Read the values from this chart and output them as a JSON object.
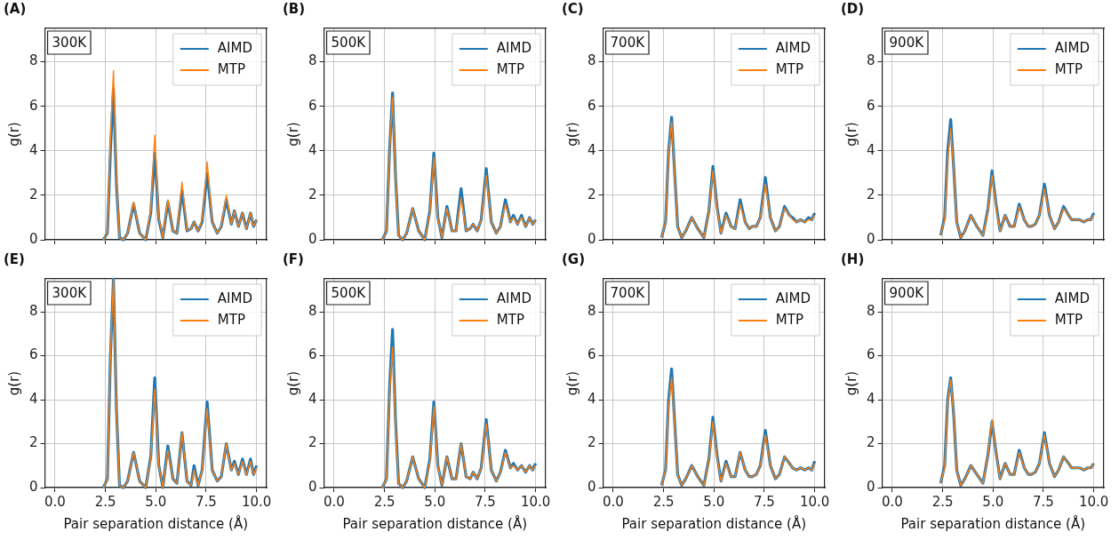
{
  "chart_data": [
    {
      "type": "line",
      "title": "(A)",
      "annotations": [
        "300K"
      ],
      "ylabel": "g(r)",
      "tick_labels": "y",
      "grid": true,
      "legend": "top right",
      "xlim": [
        -0.5,
        10.5
      ],
      "xticks": [
        {
          "value": 0,
          "label": null
        },
        {
          "value": 2.5,
          "label": null
        },
        {
          "value": 5,
          "label": null
        },
        {
          "value": 7.5,
          "label": null
        },
        {
          "value": 10,
          "label": null
        }
      ],
      "ylim": [
        0,
        9.5
      ],
      "yticks": [
        0,
        2,
        4,
        6,
        8
      ],
      "x": [
        2.4,
        2.6,
        2.75,
        2.9,
        3.05,
        3.2,
        3.4,
        3.6,
        3.9,
        4.2,
        4.5,
        4.75,
        4.95,
        5.15,
        5.35,
        5.6,
        5.85,
        6.05,
        6.3,
        6.55,
        6.75,
        6.9,
        7.1,
        7.3,
        7.55,
        7.8,
        8.05,
        8.25,
        8.5,
        8.75,
        8.9,
        9.1,
        9.3,
        9.5,
        9.7,
        9.85,
        10
      ],
      "series": [
        {
          "name": "AIMD",
          "color": "#1f77b4",
          "values": [
            0,
            0.3,
            4.0,
            6.8,
            2.5,
            0.1,
            0,
            0.3,
            1.6,
            0.3,
            0,
            1.2,
            3.9,
            0.9,
            0.1,
            1.7,
            0.4,
            0.3,
            2.2,
            0.4,
            0.5,
            0.8,
            0.4,
            0.8,
            3.0,
            0.8,
            0.3,
            0.6,
            1.8,
            0.7,
            1.3,
            0.6,
            1.2,
            0.5,
            1.2,
            0.6,
            0.9
          ]
        },
        {
          "name": "MTP",
          "color": "#ff7f0e",
          "values": [
            0,
            0.3,
            4.5,
            7.6,
            2.8,
            0.1,
            0,
            0.3,
            1.7,
            0.3,
            0,
            1.3,
            4.7,
            1.0,
            0.1,
            1.8,
            0.4,
            0.3,
            2.6,
            0.4,
            0.5,
            0.8,
            0.4,
            0.9,
            3.5,
            0.8,
            0.3,
            0.6,
            2.0,
            0.7,
            1.3,
            0.6,
            1.2,
            0.5,
            1.2,
            0.6,
            0.9
          ]
        }
      ]
    },
    {
      "type": "line",
      "title": "(B)",
      "annotations": [
        "500K"
      ],
      "ylabel": "g(r)",
      "tick_labels": "y",
      "grid": true,
      "legend": "top right",
      "xlim": [
        -0.5,
        10.5
      ],
      "xticks": [
        {
          "value": 0,
          "label": null
        },
        {
          "value": 2.5,
          "label": null
        },
        {
          "value": 5,
          "label": null
        },
        {
          "value": 7.5,
          "label": null
        },
        {
          "value": 10,
          "label": null
        }
      ],
      "ylim": [
        0,
        9.5
      ],
      "yticks": [
        0,
        2,
        4,
        6,
        8
      ],
      "x": [
        2.4,
        2.6,
        2.75,
        2.9,
        3.05,
        3.2,
        3.4,
        3.6,
        3.9,
        4.2,
        4.5,
        4.75,
        4.95,
        5.15,
        5.35,
        5.6,
        5.85,
        6.05,
        6.3,
        6.55,
        6.75,
        6.9,
        7.1,
        7.3,
        7.55,
        7.8,
        8.05,
        8.25,
        8.5,
        8.75,
        8.9,
        9.1,
        9.3,
        9.5,
        9.7,
        9.85,
        10
      ],
      "series": [
        {
          "name": "AIMD",
          "color": "#1f77b4",
          "values": [
            0,
            0.4,
            4.0,
            6.6,
            2.8,
            0.2,
            0,
            0.3,
            1.4,
            0.4,
            0,
            1.3,
            3.9,
            1.0,
            0.1,
            1.5,
            0.4,
            0.4,
            2.3,
            0.4,
            0.5,
            0.7,
            0.4,
            0.9,
            3.2,
            0.8,
            0.3,
            0.6,
            1.8,
            0.8,
            1.1,
            0.7,
            1.1,
            0.6,
            1.0,
            0.7,
            0.9
          ]
        },
        {
          "name": "MTP",
          "color": "#ff7f0e",
          "values": [
            0,
            0.4,
            3.9,
            6.4,
            2.7,
            0.2,
            0,
            0.3,
            1.4,
            0.4,
            0,
            1.2,
            3.7,
            1.0,
            0.1,
            1.4,
            0.4,
            0.4,
            1.9,
            0.4,
            0.5,
            0.7,
            0.4,
            0.9,
            2.9,
            0.8,
            0.3,
            0.6,
            1.6,
            0.8,
            1.0,
            0.7,
            1.0,
            0.6,
            1.0,
            0.7,
            0.9
          ]
        }
      ]
    },
    {
      "type": "line",
      "title": "(C)",
      "annotations": [
        "700K"
      ],
      "ylabel": "g(r)",
      "tick_labels": "y",
      "grid": true,
      "legend": "top right",
      "xlim": [
        -0.5,
        10.5
      ],
      "xticks": [
        {
          "value": 0,
          "label": null
        },
        {
          "value": 2.5,
          "label": null
        },
        {
          "value": 5,
          "label": null
        },
        {
          "value": 7.5,
          "label": null
        },
        {
          "value": 10,
          "label": null
        }
      ],
      "ylim": [
        0,
        9.5
      ],
      "yticks": [
        0,
        2,
        4,
        6,
        8
      ],
      "x": [
        2.4,
        2.6,
        2.75,
        2.9,
        3.05,
        3.2,
        3.4,
        3.6,
        3.9,
        4.2,
        4.5,
        4.75,
        4.95,
        5.15,
        5.35,
        5.6,
        5.85,
        6.05,
        6.3,
        6.55,
        6.75,
        6.9,
        7.1,
        7.3,
        7.55,
        7.8,
        8.05,
        8.25,
        8.5,
        8.75,
        8.9,
        9.1,
        9.3,
        9.5,
        9.7,
        9.85,
        10
      ],
      "series": [
        {
          "name": "AIMD",
          "color": "#1f77b4",
          "values": [
            0.1,
            0.8,
            4.0,
            5.5,
            3.0,
            0.6,
            0.1,
            0.4,
            1.0,
            0.5,
            0.1,
            1.3,
            3.3,
            1.5,
            0.3,
            1.2,
            0.6,
            0.5,
            1.8,
            0.8,
            0.5,
            0.6,
            0.6,
            1.0,
            2.8,
            1.0,
            0.4,
            0.6,
            1.5,
            1.1,
            1.0,
            0.8,
            0.9,
            0.8,
            1.0,
            0.9,
            1.2
          ]
        },
        {
          "name": "MTP",
          "color": "#ff7f0e",
          "values": [
            0.1,
            0.8,
            3.9,
            5.3,
            2.9,
            0.6,
            0.1,
            0.4,
            1.0,
            0.5,
            0.1,
            1.2,
            3.1,
            1.4,
            0.3,
            1.1,
            0.6,
            0.5,
            1.6,
            0.8,
            0.5,
            0.6,
            0.6,
            1.0,
            2.5,
            1.0,
            0.4,
            0.6,
            1.4,
            1.1,
            0.9,
            0.8,
            0.9,
            0.8,
            0.9,
            0.9,
            1.1
          ]
        }
      ]
    },
    {
      "type": "line",
      "title": "(D)",
      "annotations": [
        "900K"
      ],
      "ylabel": "g(r)",
      "tick_labels": "y",
      "grid": true,
      "legend": "top right",
      "xlim": [
        -0.5,
        10.5
      ],
      "xticks": [
        {
          "value": 0,
          "label": null
        },
        {
          "value": 2.5,
          "label": null
        },
        {
          "value": 5,
          "label": null
        },
        {
          "value": 7.5,
          "label": null
        },
        {
          "value": 10,
          "label": null
        }
      ],
      "ylim": [
        0,
        9.5
      ],
      "yticks": [
        0,
        2,
        4,
        6,
        8
      ],
      "x": [
        2.4,
        2.6,
        2.75,
        2.9,
        3.05,
        3.2,
        3.4,
        3.6,
        3.9,
        4.2,
        4.5,
        4.75,
        4.95,
        5.15,
        5.35,
        5.6,
        5.85,
        6.05,
        6.3,
        6.55,
        6.75,
        6.9,
        7.1,
        7.3,
        7.55,
        7.8,
        8.05,
        8.25,
        8.5,
        8.75,
        8.9,
        9.1,
        9.3,
        9.5,
        9.7,
        9.85,
        10
      ],
      "series": [
        {
          "name": "AIMD",
          "color": "#1f77b4",
          "values": [
            0.2,
            1.0,
            4.0,
            5.4,
            3.2,
            0.8,
            0.1,
            0.4,
            1.1,
            0.6,
            0.2,
            1.4,
            3.1,
            1.6,
            0.4,
            1.1,
            0.6,
            0.6,
            1.6,
            0.9,
            0.6,
            0.6,
            0.7,
            1.1,
            2.5,
            1.1,
            0.5,
            0.8,
            1.5,
            1.1,
            0.9,
            0.9,
            0.9,
            0.8,
            0.9,
            0.9,
            1.2
          ]
        },
        {
          "name": "MTP",
          "color": "#ff7f0e",
          "values": [
            0.2,
            0.9,
            3.6,
            5.0,
            3.1,
            0.8,
            0.1,
            0.4,
            1.1,
            0.6,
            0.2,
            1.3,
            2.9,
            1.5,
            0.4,
            1.1,
            0.6,
            0.6,
            1.5,
            0.9,
            0.6,
            0.6,
            0.7,
            1.1,
            2.3,
            1.1,
            0.5,
            0.8,
            1.4,
            1.1,
            0.9,
            0.9,
            0.9,
            0.8,
            0.9,
            0.9,
            1.1
          ]
        }
      ]
    },
    {
      "type": "line",
      "title": "(E)",
      "annotations": [
        "300K"
      ],
      "xlabel": "Pair separation distance (Å)",
      "ylabel": "g(r)",
      "grid": true,
      "legend": "top right",
      "xlim": [
        -0.5,
        10.5
      ],
      "xticks": [
        {
          "value": 0,
          "label": "0.0"
        },
        {
          "value": 2.5,
          "label": "2.5"
        },
        {
          "value": 5,
          "label": "5.0"
        },
        {
          "value": 7.5,
          "label": "7.5"
        },
        {
          "value": 10,
          "label": "10.0"
        }
      ],
      "ylim": [
        0,
        9.5
      ],
      "yticks": [
        0,
        2,
        4,
        6,
        8
      ],
      "x": [
        2.4,
        2.6,
        2.75,
        2.9,
        3.05,
        3.2,
        3.4,
        3.6,
        3.9,
        4.2,
        4.5,
        4.75,
        4.95,
        5.15,
        5.35,
        5.6,
        5.85,
        6.05,
        6.3,
        6.55,
        6.75,
        6.9,
        7.1,
        7.3,
        7.55,
        7.8,
        8.05,
        8.25,
        8.5,
        8.75,
        8.9,
        9.1,
        9.3,
        9.5,
        9.7,
        9.85,
        10
      ],
      "series": [
        {
          "name": "AIMD",
          "color": "#1f77b4",
          "values": [
            0,
            0.4,
            6.0,
            9.5,
            3.5,
            0.1,
            0,
            0.3,
            1.6,
            0.3,
            0,
            1.4,
            5.0,
            1.0,
            0,
            1.9,
            0.4,
            0.2,
            2.5,
            0.3,
            0.1,
            1.0,
            0.1,
            0.8,
            3.9,
            0.8,
            0.3,
            0.5,
            2.0,
            0.8,
            1.2,
            0.6,
            1.3,
            0.6,
            1.3,
            0.6,
            1.0
          ]
        },
        {
          "name": "MTP",
          "color": "#ff7f0e",
          "values": [
            0,
            0.4,
            6.0,
            9.5,
            3.5,
            0.1,
            0,
            0.3,
            1.6,
            0.3,
            0,
            1.3,
            4.5,
            1.0,
            0,
            1.7,
            0.4,
            0.2,
            2.5,
            0.3,
            0.1,
            0.8,
            0.1,
            0.8,
            3.6,
            0.8,
            0.3,
            0.5,
            2.0,
            0.8,
            1.1,
            0.6,
            1.2,
            0.6,
            1.2,
            0.6,
            0.9
          ]
        }
      ]
    },
    {
      "type": "line",
      "title": "(F)",
      "annotations": [
        "500K"
      ],
      "xlabel": "Pair separation distance (Å)",
      "ylabel": "g(r)",
      "grid": true,
      "legend": "top right",
      "xlim": [
        -0.5,
        10.5
      ],
      "xticks": [
        {
          "value": 0,
          "label": "0.0"
        },
        {
          "value": 2.5,
          "label": "2.5"
        },
        {
          "value": 5,
          "label": "5.0"
        },
        {
          "value": 7.5,
          "label": "7.5"
        },
        {
          "value": 10,
          "label": "10.0"
        }
      ],
      "ylim": [
        0,
        9.5
      ],
      "yticks": [
        0,
        2,
        4,
        6,
        8
      ],
      "x": [
        2.4,
        2.6,
        2.75,
        2.9,
        3.05,
        3.2,
        3.4,
        3.6,
        3.9,
        4.2,
        4.5,
        4.75,
        4.95,
        5.15,
        5.35,
        5.6,
        5.85,
        6.05,
        6.3,
        6.55,
        6.75,
        6.9,
        7.1,
        7.3,
        7.55,
        7.8,
        8.05,
        8.25,
        8.5,
        8.75,
        8.9,
        9.1,
        9.3,
        9.5,
        9.7,
        9.85,
        10
      ],
      "series": [
        {
          "name": "AIMD",
          "color": "#1f77b4",
          "values": [
            0,
            0.4,
            4.5,
            7.2,
            3.0,
            0.2,
            0,
            0.3,
            1.4,
            0.4,
            0,
            1.3,
            3.9,
            1.0,
            0.1,
            1.4,
            0.4,
            0.4,
            2.0,
            0.5,
            0.4,
            0.7,
            0.4,
            0.9,
            3.1,
            0.8,
            0.3,
            0.7,
            1.7,
            0.9,
            1.1,
            0.8,
            1.0,
            0.7,
            1.0,
            0.8,
            1.1
          ]
        },
        {
          "name": "MTP",
          "color": "#ff7f0e",
          "values": [
            0,
            0.4,
            4.2,
            6.4,
            2.8,
            0.2,
            0,
            0.3,
            1.4,
            0.4,
            0,
            1.2,
            3.7,
            1.0,
            0.1,
            1.4,
            0.4,
            0.4,
            2.0,
            0.5,
            0.4,
            0.7,
            0.4,
            0.9,
            2.9,
            0.8,
            0.3,
            0.7,
            1.6,
            0.9,
            1.0,
            0.8,
            1.0,
            0.7,
            1.0,
            0.8,
            1.0
          ]
        }
      ]
    },
    {
      "type": "line",
      "title": "(G)",
      "annotations": [
        "700K"
      ],
      "xlabel": "Pair separation distance (Å)",
      "ylabel": "g(r)",
      "grid": true,
      "legend": "top right",
      "xlim": [
        -0.5,
        10.5
      ],
      "xticks": [
        {
          "value": 0,
          "label": "0.0"
        },
        {
          "value": 2.5,
          "label": "2.5"
        },
        {
          "value": 5,
          "label": "5.0"
        },
        {
          "value": 7.5,
          "label": "7.5"
        },
        {
          "value": 10,
          "label": "10.0"
        }
      ],
      "ylim": [
        0,
        9.5
      ],
      "yticks": [
        0,
        2,
        4,
        6,
        8
      ],
      "x": [
        2.4,
        2.6,
        2.75,
        2.9,
        3.05,
        3.2,
        3.4,
        3.6,
        3.9,
        4.2,
        4.5,
        4.75,
        4.95,
        5.15,
        5.35,
        5.6,
        5.85,
        6.05,
        6.3,
        6.55,
        6.75,
        6.9,
        7.1,
        7.3,
        7.55,
        7.8,
        8.05,
        8.25,
        8.5,
        8.75,
        8.9,
        9.1,
        9.3,
        9.5,
        9.7,
        9.85,
        10
      ],
      "series": [
        {
          "name": "AIMD",
          "color": "#1f77b4",
          "values": [
            0.1,
            0.8,
            4.0,
            5.4,
            3.0,
            0.6,
            0.1,
            0.4,
            1.0,
            0.5,
            0.1,
            1.3,
            3.2,
            1.5,
            0.3,
            1.2,
            0.5,
            0.5,
            1.6,
            0.8,
            0.5,
            0.5,
            0.6,
            1.0,
            2.6,
            1.0,
            0.4,
            0.6,
            1.4,
            1.1,
            0.9,
            0.8,
            0.9,
            0.8,
            0.9,
            0.8,
            1.2
          ]
        },
        {
          "name": "MTP",
          "color": "#ff7f0e",
          "values": [
            0.1,
            0.8,
            3.7,
            5.0,
            2.9,
            0.6,
            0.1,
            0.4,
            1.0,
            0.5,
            0.1,
            1.2,
            3.0,
            1.4,
            0.3,
            1.1,
            0.5,
            0.5,
            1.6,
            0.8,
            0.5,
            0.5,
            0.6,
            1.0,
            2.4,
            1.0,
            0.4,
            0.6,
            1.4,
            1.1,
            0.9,
            0.8,
            0.9,
            0.8,
            0.9,
            0.8,
            1.1
          ]
        }
      ]
    },
    {
      "type": "line",
      "title": "(H)",
      "annotations": [
        "900K"
      ],
      "xlabel": "Pair separation distance (Å)",
      "ylabel": "g(r)",
      "grid": true,
      "legend": "top right",
      "xlim": [
        -0.5,
        10.5
      ],
      "xticks": [
        {
          "value": 0,
          "label": "0.0"
        },
        {
          "value": 2.5,
          "label": "2.5"
        },
        {
          "value": 5,
          "label": "5.0"
        },
        {
          "value": 7.5,
          "label": "7.5"
        },
        {
          "value": 10,
          "label": "10.0"
        }
      ],
      "ylim": [
        0,
        9.5
      ],
      "yticks": [
        0,
        2,
        4,
        6,
        8
      ],
      "x": [
        2.4,
        2.6,
        2.75,
        2.9,
        3.05,
        3.2,
        3.4,
        3.6,
        3.9,
        4.2,
        4.5,
        4.75,
        4.95,
        5.15,
        5.35,
        5.6,
        5.85,
        6.05,
        6.3,
        6.55,
        6.75,
        6.9,
        7.1,
        7.3,
        7.55,
        7.8,
        8.05,
        8.25,
        8.5,
        8.75,
        8.9,
        9.1,
        9.3,
        9.5,
        9.7,
        9.85,
        10
      ],
      "series": [
        {
          "name": "AIMD",
          "color": "#1f77b4",
          "values": [
            0.2,
            1.0,
            4.0,
            5.0,
            3.3,
            0.8,
            0.1,
            0.4,
            1.0,
            0.6,
            0.2,
            1.5,
            3.0,
            1.6,
            0.4,
            1.1,
            0.6,
            0.6,
            1.7,
            0.9,
            0.6,
            0.6,
            0.7,
            1.1,
            2.5,
            1.1,
            0.5,
            0.8,
            1.4,
            1.1,
            0.9,
            0.9,
            0.9,
            0.8,
            0.9,
            0.9,
            1.1
          ]
        },
        {
          "name": "MTP",
          "color": "#ff7f0e",
          "values": [
            0.2,
            0.9,
            3.9,
            4.9,
            3.3,
            0.8,
            0.1,
            0.4,
            1.0,
            0.6,
            0.2,
            1.5,
            3.1,
            1.6,
            0.4,
            1.1,
            0.6,
            0.6,
            1.6,
            0.9,
            0.6,
            0.6,
            0.7,
            1.1,
            2.4,
            1.1,
            0.5,
            0.8,
            1.4,
            1.1,
            0.9,
            0.9,
            0.9,
            0.8,
            0.9,
            0.9,
            1.1
          ]
        }
      ]
    }
  ]
}
